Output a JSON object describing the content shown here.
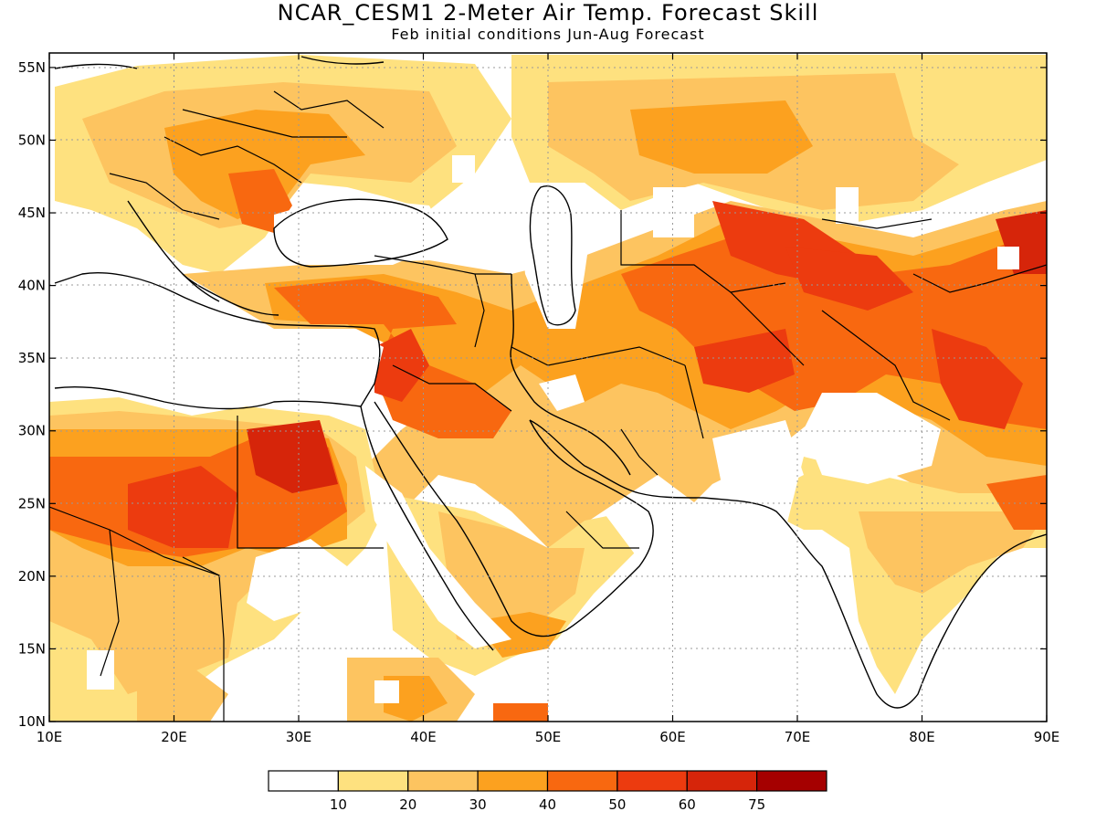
{
  "title": "NCAR_CESM1 2-Meter Air Temp. Forecast Skill",
  "subtitle": "Feb initial conditions  Jun-Aug Forecast",
  "map": {
    "lon_range": [
      10,
      90
    ],
    "lat_range": [
      10,
      56
    ],
    "lon_ticks": [
      "10E",
      "20E",
      "30E",
      "40E",
      "50E",
      "60E",
      "70E",
      "80E",
      "90E"
    ],
    "lat_ticks": [
      "55N",
      "50N",
      "45N",
      "40N",
      "35N",
      "30N",
      "25N",
      "20N",
      "15N",
      "10N"
    ],
    "grid": "dotted"
  },
  "legend": {
    "colors": [
      "#ffffff",
      "#fee17f",
      "#fdc460",
      "#fca11f",
      "#f86810",
      "#ec3b0f",
      "#d6250a",
      "#a50000"
    ],
    "labels": [
      "10",
      "20",
      "30",
      "40",
      "50",
      "60",
      "75"
    ]
  }
}
